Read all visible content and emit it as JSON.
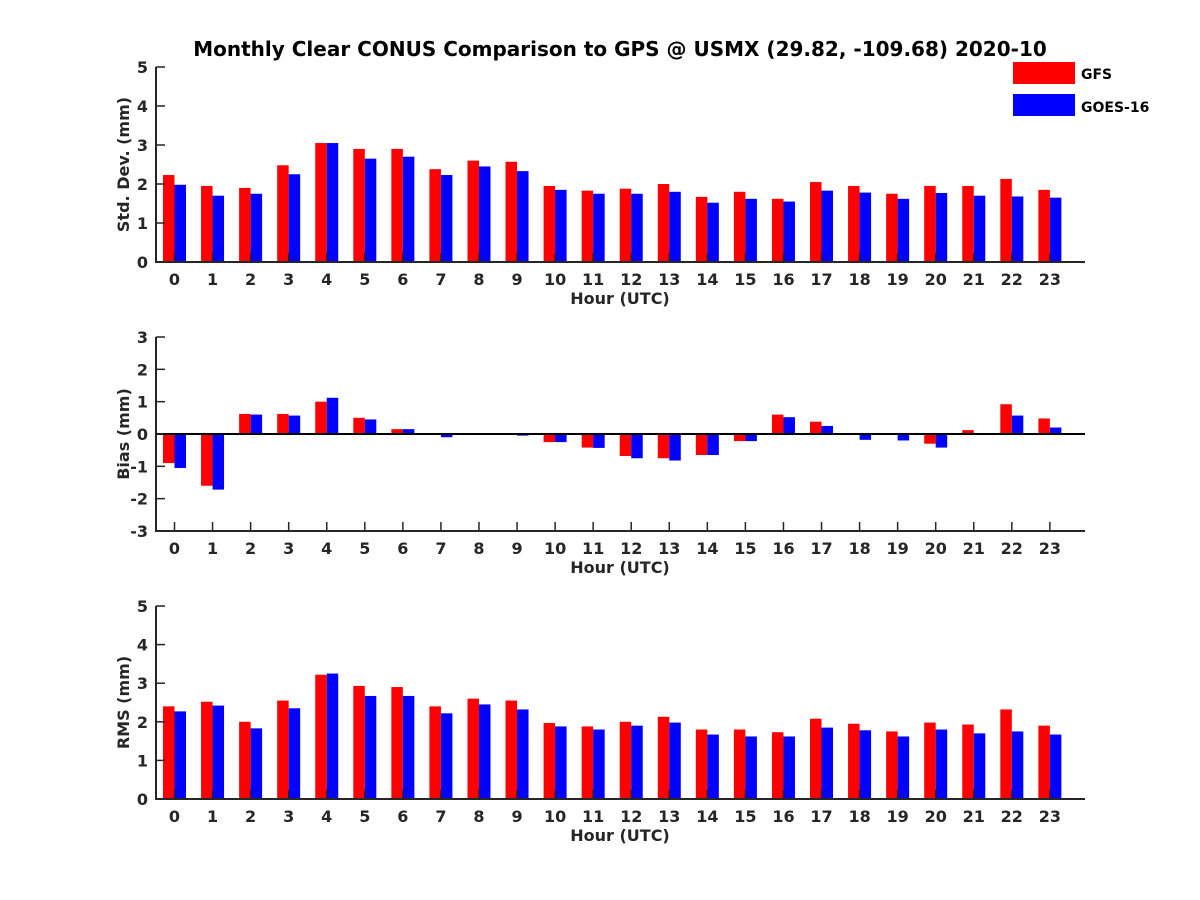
{
  "chart_data": {
    "title": "Monthly Clear CONUS Comparison to GPS @ USMX (29.82, -109.68) 2020-10",
    "type": "bar",
    "categories": [
      "0",
      "1",
      "2",
      "3",
      "4",
      "5",
      "6",
      "7",
      "8",
      "9",
      "10",
      "11",
      "12",
      "13",
      "14",
      "15",
      "16",
      "17",
      "18",
      "19",
      "20",
      "21",
      "22",
      "23"
    ],
    "legend": {
      "placement": "top-right",
      "entries": [
        {
          "name": "GFS",
          "color": "#ff0000"
        },
        {
          "name": "GOES-16",
          "color": "#0000ff"
        }
      ]
    },
    "panels": [
      {
        "id": "std",
        "ylabel": "Std. Dev. (mm)",
        "xlabel": "Hour (UTC)",
        "ylim": [
          0,
          5
        ],
        "yticks": [
          0,
          1,
          2,
          3,
          4,
          5
        ],
        "series": [
          {
            "name": "GFS",
            "values": [
              2.23,
              1.95,
              1.9,
              2.48,
              3.05,
              2.9,
              2.9,
              2.38,
              2.6,
              2.57,
              1.95,
              1.83,
              1.88,
              2.0,
              1.67,
              1.8,
              1.62,
              2.05,
              1.95,
              1.75,
              1.95,
              1.95,
              2.13,
              1.85
            ]
          },
          {
            "name": "GOES-16",
            "values": [
              1.98,
              1.7,
              1.75,
              2.25,
              3.05,
              2.65,
              2.7,
              2.23,
              2.45,
              2.33,
              1.85,
              1.75,
              1.75,
              1.8,
              1.52,
              1.62,
              1.55,
              1.83,
              1.78,
              1.62,
              1.77,
              1.7,
              1.68,
              1.65
            ]
          }
        ]
      },
      {
        "id": "bias",
        "ylabel": "Bias (mm)",
        "xlabel": "Hour (UTC)",
        "ylim": [
          -3,
          3
        ],
        "yticks": [
          -3,
          -2,
          -1,
          0,
          1,
          2,
          3
        ],
        "zeroline": true,
        "series": [
          {
            "name": "GFS",
            "values": [
              -0.9,
              -1.6,
              0.62,
              0.62,
              1.0,
              0.5,
              0.15,
              0.0,
              0.0,
              0.0,
              -0.25,
              -0.42,
              -0.68,
              -0.75,
              -0.65,
              -0.22,
              0.6,
              0.38,
              0.03,
              0.0,
              -0.3,
              0.12,
              0.92,
              0.48
            ]
          },
          {
            "name": "GOES-16",
            "values": [
              -1.05,
              -1.72,
              0.6,
              0.57,
              1.12,
              0.45,
              0.15,
              -0.1,
              0.0,
              -0.05,
              -0.25,
              -0.43,
              -0.75,
              -0.82,
              -0.65,
              -0.22,
              0.52,
              0.25,
              -0.18,
              -0.2,
              -0.42,
              0.0,
              0.57,
              0.2
            ]
          }
        ]
      },
      {
        "id": "rms",
        "ylabel": "RMS (mm)",
        "xlabel": "Hour (UTC)",
        "ylim": [
          0,
          5
        ],
        "yticks": [
          0,
          1,
          2,
          3,
          4,
          5
        ],
        "series": [
          {
            "name": "GFS",
            "values": [
              2.4,
              2.52,
              2.0,
              2.55,
              3.22,
              2.93,
              2.9,
              2.4,
              2.6,
              2.55,
              1.97,
              1.88,
              2.0,
              2.13,
              1.8,
              1.8,
              1.73,
              2.08,
              1.95,
              1.75,
              1.98,
              1.93,
              2.32,
              1.9
            ]
          },
          {
            "name": "GOES-16",
            "values": [
              2.27,
              2.42,
              1.83,
              2.35,
              3.25,
              2.67,
              2.67,
              2.22,
              2.45,
              2.32,
              1.88,
              1.8,
              1.9,
              1.98,
              1.67,
              1.62,
              1.62,
              1.85,
              1.78,
              1.62,
              1.8,
              1.7,
              1.75,
              1.67
            ]
          }
        ]
      }
    ]
  }
}
